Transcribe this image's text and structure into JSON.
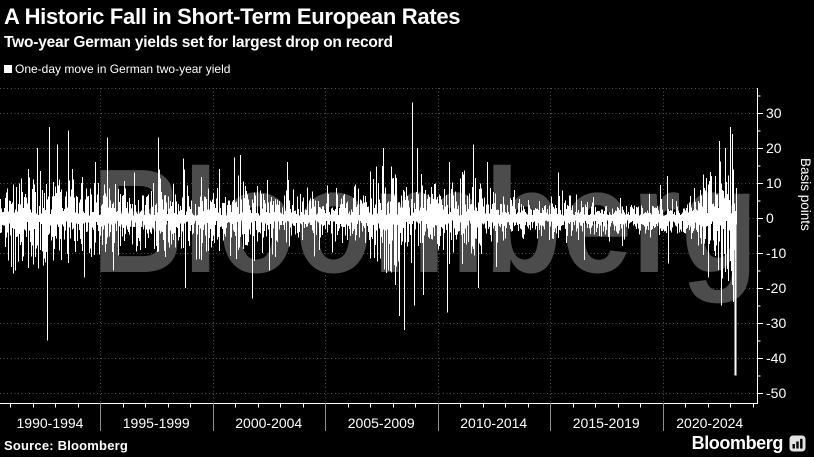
{
  "header": {
    "title": "A Historic Fall in Short-Term European Rates",
    "subtitle": "Two-year German yields set for largest drop on record"
  },
  "legend": {
    "label": "One-day move in German two-year yield",
    "swatch_color": "#ffffff"
  },
  "watermark": "Bloomberg",
  "footer": {
    "source": "Source: Bloomberg",
    "brand": "Bloomberg",
    "brand_icon": "bloomberg-terminal-icon"
  },
  "colors": {
    "background": "#000000",
    "text": "#ffffff",
    "bars": "#ffffff",
    "grid": "#525252",
    "axis": "#ffffff",
    "watermark": "#4c4c4c",
    "separator": "#8f8f8f"
  },
  "chart_data": {
    "type": "bar",
    "title": "A Historic Fall in Short-Term European Rates",
    "subtitle": "Two-year German yields set for largest drop on record",
    "series_name": "One-day move in German two-year yield",
    "unit": "basis points",
    "ylabel": "Basis points",
    "xlabel": "",
    "grid": true,
    "legend_position": "top-left",
    "y_ticks": [
      30,
      20,
      10,
      0,
      -10,
      -20,
      -30,
      -40,
      -50
    ],
    "y_minor_ticks": [
      35,
      25,
      15,
      5,
      -5,
      -15,
      -25,
      -35,
      -45
    ],
    "ylim": [
      -52.9,
      37.1
    ],
    "x_axis": {
      "period_labels": [
        "1990-1994",
        "1995-1999",
        "2000-2004",
        "2005-2009",
        "2010-2014",
        "2015-2019",
        "2020-2024"
      ],
      "gridline_years": [
        1995,
        2000,
        2005,
        2010,
        2015,
        2020
      ],
      "minor_tick_interval_years": 1,
      "data_start_year": 1990,
      "data_end_year": 2023.25
    },
    "volatility_by_year": {
      "1990": 5.5,
      "1991": 6.0,
      "1992": 7.5,
      "1993": 6.5,
      "1994": 6.5,
      "1995": 6.0,
      "1996": 4.5,
      "1997": 5.0,
      "1998": 5.5,
      "1999": 4.5,
      "2000": 5.0,
      "2001": 6.0,
      "2002": 5.0,
      "2003": 5.0,
      "2004": 4.0,
      "2005": 3.5,
      "2006": 3.5,
      "2007": 5.0,
      "2008": 9.0,
      "2009": 6.0,
      "2010": 5.5,
      "2011": 6.0,
      "2012": 5.0,
      "2013": 3.0,
      "2014": 2.2,
      "2015": 3.0,
      "2016": 2.8,
      "2017": 2.2,
      "2018": 2.5,
      "2019": 2.2,
      "2020": 3.5,
      "2021": 2.0,
      "2022": 7.0,
      "2023": 9.0
    },
    "notable_moves": [
      {
        "year": 1990.5,
        "value": 15
      },
      {
        "year": 1991.2,
        "value": -15
      },
      {
        "year": 1991.8,
        "value": 14
      },
      {
        "year": 1992.2,
        "value": 20
      },
      {
        "year": 1992.65,
        "value": -35
      },
      {
        "year": 1992.75,
        "value": 26
      },
      {
        "year": 1993.1,
        "value": 21
      },
      {
        "year": 1993.6,
        "value": 25
      },
      {
        "year": 1994.3,
        "value": -17
      },
      {
        "year": 1994.8,
        "value": 16
      },
      {
        "year": 1995.3,
        "value": 23
      },
      {
        "year": 1995.6,
        "value": -15
      },
      {
        "year": 1996.5,
        "value": 13
      },
      {
        "year": 1997.6,
        "value": 23
      },
      {
        "year": 1998.7,
        "value": 17
      },
      {
        "year": 1998.8,
        "value": -20
      },
      {
        "year": 1999.5,
        "value": -12
      },
      {
        "year": 2000.3,
        "value": 14
      },
      {
        "year": 2001.2,
        "value": 18
      },
      {
        "year": 2001.75,
        "value": -23
      },
      {
        "year": 2002.5,
        "value": -15
      },
      {
        "year": 2003.3,
        "value": 16
      },
      {
        "year": 2004.5,
        "value": -11
      },
      {
        "year": 2006.3,
        "value": 9
      },
      {
        "year": 2007.6,
        "value": 20
      },
      {
        "year": 2007.8,
        "value": -15
      },
      {
        "year": 2008.3,
        "value": -28
      },
      {
        "year": 2008.5,
        "value": -32
      },
      {
        "year": 2008.85,
        "value": 33
      },
      {
        "year": 2008.95,
        "value": -25
      },
      {
        "year": 2009.1,
        "value": 20
      },
      {
        "year": 2009.35,
        "value": -22
      },
      {
        "year": 2010.4,
        "value": -27
      },
      {
        "year": 2010.5,
        "value": 16
      },
      {
        "year": 2011.6,
        "value": 21
      },
      {
        "year": 2011.8,
        "value": -20
      },
      {
        "year": 2012.2,
        "value": 16
      },
      {
        "year": 2012.6,
        "value": -14
      },
      {
        "year": 2013.4,
        "value": 8
      },
      {
        "year": 2015.35,
        "value": 13
      },
      {
        "year": 2016.5,
        "value": -12
      },
      {
        "year": 2018.2,
        "value": -8
      },
      {
        "year": 2020.2,
        "value": 12
      },
      {
        "year": 2020.25,
        "value": -13
      },
      {
        "year": 2021.9,
        "value": 7
      },
      {
        "year": 2022.15,
        "value": 12
      },
      {
        "year": 2022.5,
        "value": 22
      },
      {
        "year": 2022.6,
        "value": -25
      },
      {
        "year": 2022.8,
        "value": 20
      },
      {
        "year": 2022.9,
        "value": -18
      },
      {
        "year": 2023.0,
        "value": 26
      },
      {
        "year": 2023.07,
        "value": 24
      },
      {
        "year": 2023.12,
        "value": -24
      }
    ],
    "record_drop": {
      "year": 2023.2,
      "value": -45,
      "note": "largest one-day drop on record"
    }
  }
}
